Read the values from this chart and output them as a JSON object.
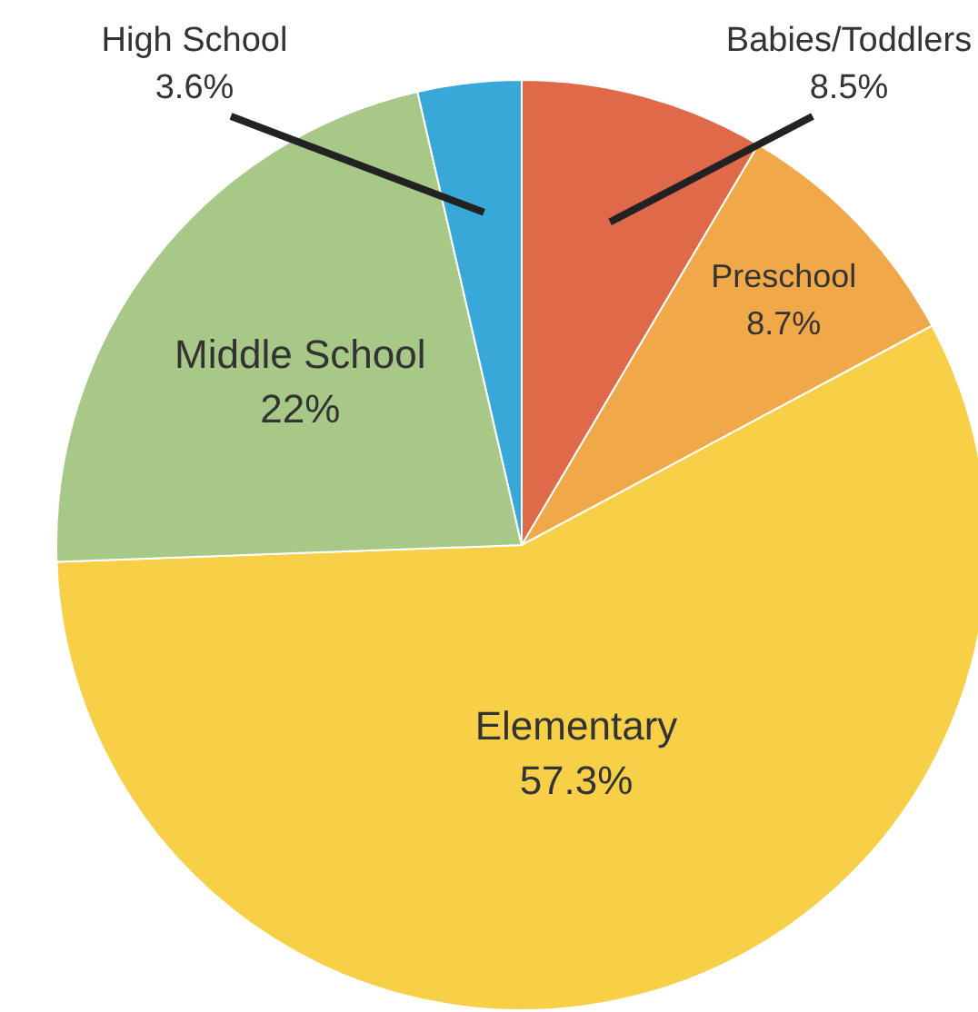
{
  "chart_data": {
    "type": "pie",
    "categories": [
      "Babies/Toddlers",
      "Preschool",
      "Elementary",
      "Middle School",
      "High School"
    ],
    "values": [
      8.5,
      8.7,
      57.3,
      22,
      3.6
    ],
    "colors": [
      "#e0694a",
      "#f0a848",
      "#f8d048",
      "#a8c888",
      "#38a8d8"
    ],
    "value_labels": [
      "8.5%",
      "8.7%",
      "57.3%",
      "22%",
      "3.6%"
    ]
  }
}
